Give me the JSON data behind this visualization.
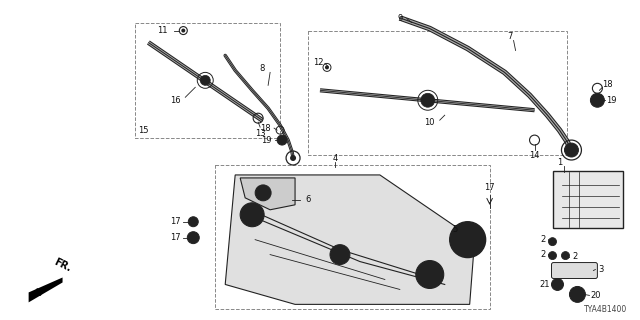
{
  "bg_color": "#ffffff",
  "fig_width": 6.4,
  "fig_height": 3.2,
  "line_color": "#222222",
  "label_fontsize": 6.0,
  "footer_code": "TYA4B1400"
}
